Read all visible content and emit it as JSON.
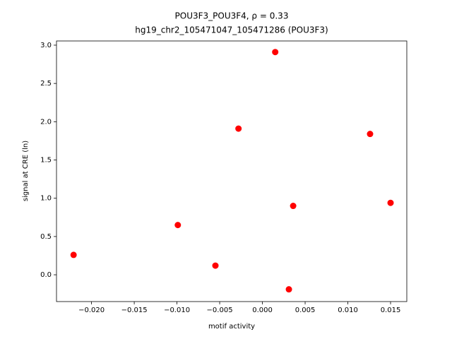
{
  "chart_data": {
    "type": "scatter",
    "title": "POU3F3_POU3F4, ρ = 0.33",
    "subtitle": "hg19_chr2_105471047_105471286 (POU3F3)",
    "x_label": "motif activity",
    "y_label": "signal at CRE (ln)",
    "color": "#ff0000",
    "x": [
      -0.0221,
      -0.0099,
      -0.0055,
      -0.0028,
      0.0015,
      0.0031,
      0.0036,
      0.0126,
      0.015
    ],
    "values": [
      0.26,
      0.65,
      0.12,
      1.91,
      2.91,
      -0.19,
      0.9,
      1.84,
      0.94
    ],
    "xlim": [
      -0.0241,
      0.0169
    ],
    "ylim": [
      -0.35,
      3.055
    ],
    "xticks": [
      {
        "value": -0.02,
        "label": "−0.020"
      },
      {
        "value": -0.015,
        "label": "−0.015"
      },
      {
        "value": -0.01,
        "label": "−0.010"
      },
      {
        "value": -0.005,
        "label": "−0.005"
      },
      {
        "value": 0,
        "label": "0.000"
      },
      {
        "value": 0.005,
        "label": "0.005"
      },
      {
        "value": 0.01,
        "label": "0.010"
      },
      {
        "value": 0.015,
        "label": "0.015"
      }
    ],
    "yticks": [
      {
        "value": 0,
        "label": "0.0"
      },
      {
        "value": 0.5,
        "label": "0.5"
      },
      {
        "value": 1,
        "label": "1.0"
      },
      {
        "value": 1.5,
        "label": "1.5"
      },
      {
        "value": 2,
        "label": "2.0"
      },
      {
        "value": 2.5,
        "label": "2.5"
      },
      {
        "value": 3,
        "label": "3.0"
      }
    ]
  }
}
